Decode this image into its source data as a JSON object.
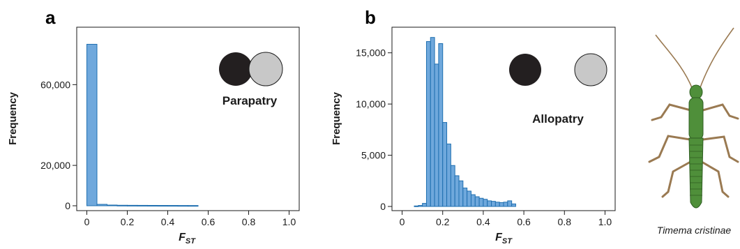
{
  "colors": {
    "bar_fill": "#6fa8dc",
    "bar_stroke": "#1f6fb0",
    "circle_dark": "#231f20",
    "circle_light": "#c8c8c8",
    "insect_body": "#4f8f3a",
    "insect_legs": "#9a7a52"
  },
  "insect": {
    "caption": "Timema cristinae",
    "icon": "stick-insect-illustration"
  },
  "chart_data": [
    {
      "type": "bar",
      "panel": "a",
      "annotation": "Parapatry",
      "annotation_icon": "overlapping-circles-icon",
      "xlabel": "F",
      "xlabel_sub": "ST",
      "ylabel": "Frequency",
      "xlim": [
        -0.05,
        1.05
      ],
      "ylim": [
        0,
        85000
      ],
      "x_ticks": [
        0,
        0.2,
        0.4,
        0.6,
        0.8,
        1.0
      ],
      "x_tick_labels": [
        "0",
        "0.2",
        "0.4",
        "0.6",
        "0.8",
        "1.0"
      ],
      "y_ticks": [
        0,
        20000,
        60000
      ],
      "y_tick_labels": [
        "0",
        "20,000",
        "60,000"
      ],
      "bin_width": 0.05,
      "bin_starts": [
        0.0,
        0.05,
        0.1,
        0.15,
        0.2,
        0.25,
        0.3,
        0.35,
        0.4,
        0.45,
        0.5
      ],
      "values": [
        80000,
        700,
        350,
        250,
        220,
        200,
        180,
        160,
        150,
        130,
        120
      ]
    },
    {
      "type": "bar",
      "panel": "b",
      "annotation": "Allopatry",
      "annotation_icon": "separated-circles-icon",
      "xlabel": "F",
      "xlabel_sub": "ST",
      "ylabel": "Frequency",
      "xlim": [
        -0.05,
        1.05
      ],
      "ylim": [
        0,
        17500
      ],
      "x_ticks": [
        0,
        0.2,
        0.4,
        0.6,
        0.8,
        1.0
      ],
      "x_tick_labels": [
        "0",
        "0.2",
        "0.4",
        "0.6",
        "0.8",
        "1.0"
      ],
      "y_ticks": [
        0,
        5000,
        10000,
        15000
      ],
      "y_tick_labels": [
        "0",
        "5,000",
        "10,000",
        "15,000"
      ],
      "bin_width": 0.02,
      "bin_starts": [
        0.06,
        0.08,
        0.1,
        0.12,
        0.14,
        0.16,
        0.18,
        0.2,
        0.22,
        0.24,
        0.26,
        0.28,
        0.3,
        0.32,
        0.34,
        0.36,
        0.38,
        0.4,
        0.42,
        0.44,
        0.46,
        0.48,
        0.5,
        0.52,
        0.54
      ],
      "values": [
        50,
        100,
        300,
        16100,
        16500,
        13900,
        15900,
        8200,
        6100,
        4000,
        3000,
        2500,
        1800,
        1500,
        1150,
        950,
        800,
        700,
        550,
        500,
        420,
        380,
        420,
        550,
        250
      ]
    }
  ]
}
